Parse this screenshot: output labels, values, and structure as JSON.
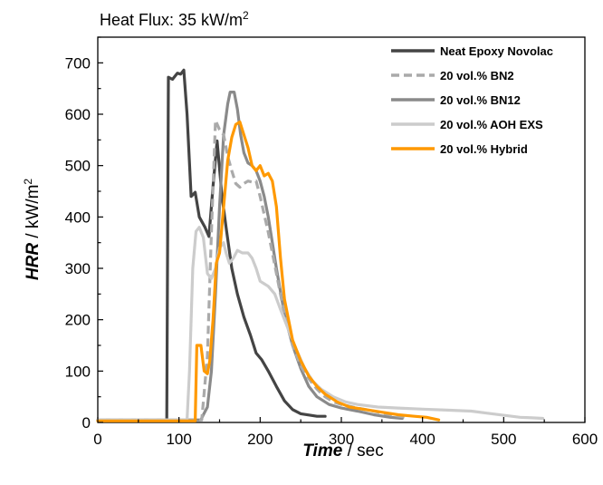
{
  "chart_data": {
    "type": "line",
    "title": "Heat Flux: 35 kW/m",
    "title_sup": "2",
    "xlabel": {
      "bold": "Time",
      "rest": " / sec"
    },
    "ylabel": {
      "bold": "HRR",
      "rest": " / kW/m",
      "sup": "2"
    },
    "xlim": [
      0,
      600
    ],
    "ylim": [
      0,
      750
    ],
    "xticks": [
      0,
      100,
      200,
      300,
      400,
      500,
      600
    ],
    "yticks": [
      0,
      100,
      200,
      300,
      400,
      500,
      600,
      700
    ],
    "grid": false,
    "legend_position": "top-right",
    "series": [
      {
        "name": "Neat Epoxy Novolac",
        "color": "#444444",
        "dash": "solid",
        "points": [
          [
            0,
            5
          ],
          [
            85,
            5
          ],
          [
            87,
            672
          ],
          [
            92,
            668
          ],
          [
            98,
            680
          ],
          [
            102,
            678
          ],
          [
            106,
            686
          ],
          [
            110,
            600
          ],
          [
            115,
            440
          ],
          [
            120,
            448
          ],
          [
            125,
            400
          ],
          [
            132,
            380
          ],
          [
            137,
            362
          ],
          [
            142,
            460
          ],
          [
            147,
            548
          ],
          [
            153,
            440
          ],
          [
            158,
            380
          ],
          [
            165,
            300
          ],
          [
            172,
            250
          ],
          [
            180,
            205
          ],
          [
            188,
            170
          ],
          [
            195,
            135
          ],
          [
            202,
            122
          ],
          [
            210,
            100
          ],
          [
            220,
            70
          ],
          [
            230,
            42
          ],
          [
            240,
            25
          ],
          [
            250,
            17
          ],
          [
            262,
            14
          ],
          [
            270,
            12
          ],
          [
            280,
            12
          ]
        ]
      },
      {
        "name": "20 vol.% BN2",
        "color": "#aaaaaa",
        "dash": "dashed",
        "points": [
          [
            0,
            5
          ],
          [
            128,
            5
          ],
          [
            130,
            40
          ],
          [
            135,
            130
          ],
          [
            140,
            370
          ],
          [
            145,
            588
          ],
          [
            150,
            570
          ],
          [
            155,
            560
          ],
          [
            160,
            518
          ],
          [
            165,
            490
          ],
          [
            170,
            465
          ],
          [
            175,
            458
          ],
          [
            180,
            465
          ],
          [
            185,
            470
          ],
          [
            190,
            468
          ],
          [
            195,
            470
          ],
          [
            200,
            440
          ],
          [
            210,
            370
          ],
          [
            220,
            290
          ],
          [
            230,
            210
          ],
          [
            240,
            150
          ],
          [
            250,
            110
          ],
          [
            260,
            85
          ],
          [
            270,
            65
          ],
          [
            280,
            50
          ],
          [
            290,
            40
          ],
          [
            300,
            35
          ],
          [
            320,
            28
          ],
          [
            340,
            22
          ],
          [
            360,
            15
          ],
          [
            380,
            10
          ]
        ]
      },
      {
        "name": "20 vol.% BN12",
        "color": "#8a8a8a",
        "dash": "solid",
        "points": [
          [
            0,
            5
          ],
          [
            127,
            5
          ],
          [
            130,
            15
          ],
          [
            135,
            30
          ],
          [
            140,
            100
          ],
          [
            145,
            250
          ],
          [
            150,
            420
          ],
          [
            155,
            560
          ],
          [
            160,
            620
          ],
          [
            163,
            643
          ],
          [
            168,
            643
          ],
          [
            172,
            610
          ],
          [
            176,
            560
          ],
          [
            180,
            525
          ],
          [
            185,
            505
          ],
          [
            190,
            500
          ],
          [
            195,
            490
          ],
          [
            200,
            470
          ],
          [
            205,
            440
          ],
          [
            210,
            400
          ],
          [
            220,
            300
          ],
          [
            230,
            210
          ],
          [
            240,
            150
          ],
          [
            250,
            105
          ],
          [
            260,
            70
          ],
          [
            270,
            50
          ],
          [
            285,
            35
          ],
          [
            300,
            28
          ],
          [
            320,
            22
          ],
          [
            340,
            15
          ],
          [
            360,
            10
          ],
          [
            375,
            8
          ]
        ]
      },
      {
        "name": "20 vol.% AOH EXS",
        "color": "#cccccc",
        "dash": "solid",
        "points": [
          [
            0,
            5
          ],
          [
            110,
            5
          ],
          [
            113,
            100
          ],
          [
            117,
            300
          ],
          [
            121,
            372
          ],
          [
            125,
            380
          ],
          [
            130,
            360
          ],
          [
            135,
            290
          ],
          [
            140,
            280
          ],
          [
            145,
            300
          ],
          [
            150,
            340
          ],
          [
            155,
            350
          ],
          [
            158,
            330
          ],
          [
            162,
            310
          ],
          [
            167,
            320
          ],
          [
            172,
            335
          ],
          [
            178,
            330
          ],
          [
            185,
            330
          ],
          [
            190,
            320
          ],
          [
            195,
            300
          ],
          [
            200,
            275
          ],
          [
            205,
            270
          ],
          [
            210,
            265
          ],
          [
            218,
            250
          ],
          [
            225,
            220
          ],
          [
            235,
            180
          ],
          [
            245,
            140
          ],
          [
            255,
            105
          ],
          [
            265,
            80
          ],
          [
            275,
            65
          ],
          [
            290,
            50
          ],
          [
            305,
            40
          ],
          [
            320,
            35
          ],
          [
            345,
            30
          ],
          [
            370,
            28
          ],
          [
            400,
            26
          ],
          [
            430,
            24
          ],
          [
            460,
            22
          ],
          [
            480,
            18
          ],
          [
            500,
            14
          ],
          [
            520,
            10
          ],
          [
            535,
            9
          ],
          [
            548,
            8
          ]
        ]
      },
      {
        "name": "20 vol.% Hybrid",
        "color": "#ff9900",
        "dash": "solid",
        "points": [
          [
            0,
            3
          ],
          [
            120,
            3
          ],
          [
            122,
            150
          ],
          [
            127,
            150
          ],
          [
            131,
            100
          ],
          [
            135,
            95
          ],
          [
            138,
            120
          ],
          [
            142,
            200
          ],
          [
            146,
            310
          ],
          [
            150,
            330
          ],
          [
            155,
            420
          ],
          [
            160,
            510
          ],
          [
            165,
            555
          ],
          [
            170,
            580
          ],
          [
            175,
            585
          ],
          [
            180,
            560
          ],
          [
            185,
            535
          ],
          [
            190,
            500
          ],
          [
            195,
            490
          ],
          [
            200,
            500
          ],
          [
            205,
            480
          ],
          [
            210,
            485
          ],
          [
            215,
            470
          ],
          [
            220,
            420
          ],
          [
            225,
            320
          ],
          [
            230,
            240
          ],
          [
            240,
            160
          ],
          [
            250,
            120
          ],
          [
            260,
            90
          ],
          [
            270,
            70
          ],
          [
            280,
            55
          ],
          [
            295,
            40
          ],
          [
            310,
            30
          ],
          [
            330,
            25
          ],
          [
            350,
            20
          ],
          [
            370,
            15
          ],
          [
            390,
            12
          ],
          [
            405,
            10
          ],
          [
            420,
            5
          ]
        ]
      }
    ]
  }
}
